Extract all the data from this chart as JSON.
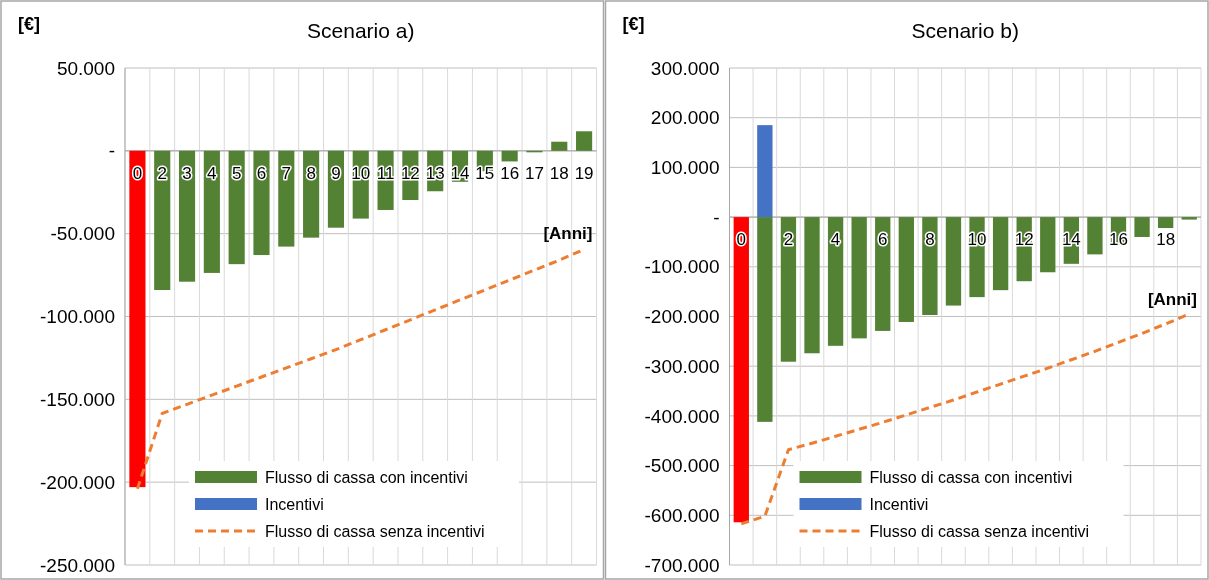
{
  "chart_data": [
    {
      "type": "bar",
      "title": "Scenario a)",
      "ylabel": "[€]",
      "xlabel": "[Anni]",
      "categories": [
        "0",
        "2",
        "3",
        "4",
        "5",
        "6",
        "7",
        "8",
        "9",
        "10",
        "11",
        "12",
        "13",
        "14",
        "15",
        "16",
        "17",
        "18",
        "19"
      ],
      "ylim": [
        -250000,
        50000
      ],
      "yticks": [
        {
          "value": -250000,
          "label": "-250.000"
        },
        {
          "value": -200000,
          "label": "-200.000"
        },
        {
          "value": -150000,
          "label": "-150.000"
        },
        {
          "value": -100000,
          "label": "-100.000"
        },
        {
          "value": -50000,
          "label": "-50.000"
        },
        {
          "value": 0,
          "label": "-"
        },
        {
          "value": 50000,
          "label": "50.000"
        }
      ],
      "grid": true,
      "legend": "bottom",
      "series": [
        {
          "name": "Flusso di cassa con incentivi",
          "color": "#548235",
          "colors": [
            "#ff0000",
            "#548235",
            "#548235",
            "#548235",
            "#548235",
            "#548235",
            "#548235",
            "#548235",
            "#548235",
            "#548235",
            "#548235",
            "#548235",
            "#548235",
            "#548235",
            "#548235",
            "#548235",
            "#548235",
            "#548235",
            "#548235"
          ],
          "values": [
            -203000,
            -84000,
            -79000,
            -73700,
            -68400,
            -62900,
            -57800,
            -52400,
            -46400,
            -40900,
            -35700,
            -29700,
            -24400,
            -18700,
            -12300,
            -6400,
            -900,
            5500,
            11800
          ]
        },
        {
          "name": "Incentivi",
          "color": "#4472c4",
          "values": [
            null,
            null,
            null,
            null,
            null,
            null,
            null,
            null,
            null,
            null,
            null,
            null,
            null,
            null,
            null,
            null,
            null,
            null,
            null
          ]
        },
        {
          "name": "Flusso di cassa senza incentivi",
          "type": "line",
          "line_style": "dashed",
          "color": "#ed7d31",
          "values": [
            -204000,
            -158500,
            -153000,
            -147500,
            -142000,
            -136500,
            -131000,
            -125500,
            -120000,
            -114000,
            -108000,
            -102000,
            -96000,
            -90000,
            -84000,
            -78000,
            -72000,
            -66000,
            -59500
          ]
        }
      ]
    },
    {
      "type": "bar",
      "title": "Scenario b)",
      "ylabel": "[€]",
      "xlabel": "[Anni]",
      "categories": [
        "0",
        null,
        "2",
        null,
        "4",
        null,
        "6",
        null,
        "8",
        null,
        "10",
        null,
        "12",
        null,
        "14",
        null,
        "16",
        null,
        "18",
        null
      ],
      "ylim": [
        -700000,
        300000
      ],
      "yticks": [
        {
          "value": -700000,
          "label": "-700.000"
        },
        {
          "value": -600000,
          "label": "-600.000"
        },
        {
          "value": -500000,
          "label": "-500.000"
        },
        {
          "value": -400000,
          "label": "-400.000"
        },
        {
          "value": -300000,
          "label": "-300.000"
        },
        {
          "value": -200000,
          "label": "-200.000"
        },
        {
          "value": -100000,
          "label": "-100.000"
        },
        {
          "value": 0,
          "label": "-"
        },
        {
          "value": 100000,
          "label": "100.000"
        },
        {
          "value": 200000,
          "label": "200.000"
        },
        {
          "value": 300000,
          "label": "300.000"
        }
      ],
      "grid": true,
      "legend": "bottom",
      "series": [
        {
          "name": "Flusso di cassa con incentivi",
          "color": "#548235",
          "colors": [
            "#ff0000",
            "#548235",
            "#548235",
            "#548235",
            "#548235",
            "#548235",
            "#548235",
            "#548235",
            "#548235",
            "#548235",
            "#548235",
            "#548235",
            "#548235",
            "#548235",
            "#548235",
            "#548235",
            "#548235",
            "#548235",
            "#548235",
            "#548235"
          ],
          "values": [
            -614000,
            -412000,
            -291000,
            -274000,
            -259000,
            -244000,
            -229000,
            -211000,
            -197000,
            -178000,
            -161000,
            -147000,
            -129000,
            -111000,
            -94000,
            -75000,
            -56000,
            -40000,
            -22000,
            -5000
          ]
        },
        {
          "name": "Incentivi",
          "color": "#4472c4",
          "values": [
            null,
            185000,
            null,
            null,
            null,
            null,
            null,
            null,
            null,
            null,
            null,
            null,
            null,
            null,
            null,
            null,
            null,
            null,
            null,
            null
          ]
        },
        {
          "name": "Flusso di cassa senza incentivi",
          "type": "line",
          "line_style": "dashed",
          "color": "#ed7d31",
          "values": [
            -617000,
            -602000,
            -468000,
            -455000,
            -441000,
            -427000,
            -413000,
            -398000,
            -383000,
            -368000,
            -352000,
            -336000,
            -320000,
            -304000,
            -287000,
            -270000,
            -252000,
            -234000,
            -215000,
            -195000
          ]
        }
      ]
    }
  ]
}
